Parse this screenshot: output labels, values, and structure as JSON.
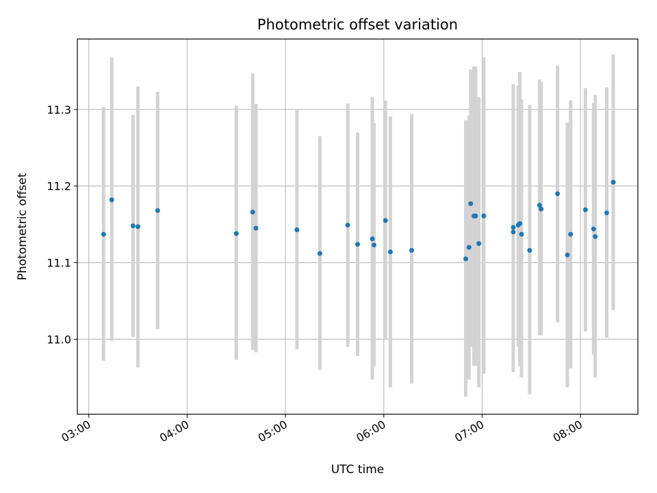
{
  "chart_data": {
    "type": "scatter",
    "title": "Photometric offset variation",
    "xlabel": "UTC time",
    "ylabel": "Photometric offset",
    "x_axis_kind": "time",
    "xlim": [
      "02:53",
      "08:35"
    ],
    "ylim": [
      10.902,
      11.392
    ],
    "x_ticks": [
      "03:00",
      "04:00",
      "05:00",
      "06:00",
      "07:00",
      "08:00"
    ],
    "y_ticks": [
      11.0,
      11.1,
      11.2,
      11.3
    ],
    "y_tick_labels": [
      "11.0",
      "11.1",
      "11.2",
      "11.3"
    ],
    "grid": true,
    "legend": "none",
    "colors": {
      "marker": "#1f77b4",
      "errorbar": "#d3d3d3",
      "grid": "#b0b0b0"
    },
    "series": [
      {
        "x": [
          "03:09",
          "03:14",
          "03:27",
          "03:30",
          "03:42",
          "04:30",
          "04:40",
          "04:42",
          "05:07",
          "05:21",
          "05:38",
          "05:44",
          "05:53",
          "05:54",
          "06:01",
          "06:04",
          "06:17",
          "06:50",
          "06:52",
          "06:53",
          "06:55",
          "06:56",
          "06:58",
          "07:01",
          "07:19",
          "07:19",
          "07:22",
          "07:23",
          "07:24",
          "07:29",
          "07:35",
          "07:36",
          "07:46",
          "07:52",
          "07:54",
          "08:03",
          "08:08",
          "08:09",
          "08:16",
          "08:20"
        ],
        "y": [
          11.137,
          11.182,
          11.148,
          11.147,
          11.168,
          11.138,
          11.166,
          11.145,
          11.143,
          11.112,
          11.149,
          11.124,
          11.131,
          11.123,
          11.155,
          11.114,
          11.116,
          11.105,
          11.12,
          11.177,
          11.161,
          11.161,
          11.125,
          11.161,
          11.146,
          11.14,
          11.149,
          11.151,
          11.137,
          11.116,
          11.175,
          11.17,
          11.19,
          11.11,
          11.137,
          11.169,
          11.144,
          11.134,
          11.165,
          11.205
        ],
        "err_low": [
          10.972,
          10.998,
          11.003,
          10.963,
          11.013,
          10.973,
          10.986,
          10.983,
          10.987,
          10.96,
          10.99,
          10.978,
          10.947,
          10.965,
          11.0,
          10.937,
          10.942,
          10.925,
          10.947,
          10.99,
          10.965,
          10.965,
          10.937,
          10.955,
          10.962,
          10.957,
          10.99,
          10.965,
          10.95,
          10.928,
          11.005,
          11.005,
          11.022,
          10.937,
          10.962,
          11.01,
          10.98,
          10.95,
          11.002,
          11.038
        ],
        "err_high": [
          11.303,
          11.368,
          11.293,
          11.33,
          11.323,
          11.305,
          11.347,
          11.307,
          11.3,
          11.265,
          11.308,
          11.27,
          11.316,
          11.282,
          11.312,
          11.291,
          11.294,
          11.286,
          11.292,
          11.352,
          11.356,
          11.356,
          11.316,
          11.368,
          11.333,
          11.326,
          11.331,
          11.349,
          11.313,
          11.306,
          11.339,
          11.336,
          11.357,
          11.283,
          11.312,
          11.328,
          11.308,
          11.319,
          11.329,
          11.372
        ]
      }
    ]
  }
}
